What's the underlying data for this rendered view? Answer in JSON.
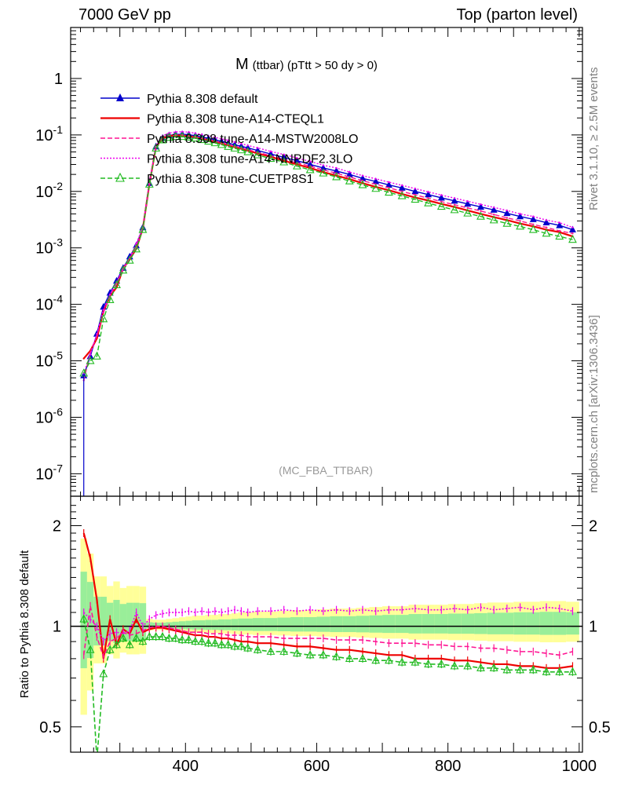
{
  "header": {
    "left": "7000 GeV pp",
    "right": "Top (parton level)"
  },
  "side_labels": {
    "rivet": "Rivet 3.1.10, ≥ 2.5M events",
    "mcplots": "mcplots.cern.ch [arXiv:1306.3436]"
  },
  "chart_data": [
    {
      "type": "line",
      "panel": "main",
      "title": "M (ttbar) (pTtt > 50 dy > 0)",
      "title_main": "M",
      "title_sub": "(ttbar) (pTtt > 50 dy > 0)",
      "watermark": "(MC_FBA_TTBAR)",
      "xlabel": "",
      "ylabel": "",
      "xlim": [
        225,
        1005
      ],
      "ylim": [
        4e-08,
        8
      ],
      "yscale": "log",
      "y_tick_labels": [
        "10^-7",
        "10^-6",
        "10^-5",
        "10^-4",
        "10^-3",
        "10^-2",
        "10^-1",
        "1"
      ],
      "x": [
        245,
        255,
        265,
        275,
        285,
        295,
        305,
        315,
        325,
        335,
        345,
        355,
        365,
        375,
        385,
        395,
        405,
        415,
        425,
        435,
        445,
        455,
        465,
        475,
        485,
        495,
        510,
        530,
        550,
        570,
        590,
        610,
        630,
        650,
        670,
        690,
        710,
        730,
        750,
        770,
        790,
        810,
        830,
        850,
        870,
        890,
        910,
        930,
        950,
        970,
        990
      ],
      "series": [
        {
          "name": "Pythia 8.308 default",
          "color": "#0000cc",
          "style": "solid",
          "marker": "triangle-filled",
          "values": [
            5.5e-06,
            1.2e-05,
            3e-05,
            9e-05,
            0.00016,
            0.00026,
            0.00044,
            0.0007,
            0.0011,
            0.0023,
            0.014,
            0.062,
            0.088,
            0.098,
            0.102,
            0.103,
            0.101,
            0.097,
            0.092,
            0.087,
            0.082,
            0.077,
            0.072,
            0.067,
            0.063,
            0.059,
            0.053,
            0.046,
            0.04,
            0.035,
            0.03,
            0.026,
            0.023,
            0.02,
            0.017,
            0.015,
            0.013,
            0.0115,
            0.01,
            0.0088,
            0.0077,
            0.0068,
            0.006,
            0.0053,
            0.0047,
            0.0041,
            0.0036,
            0.0032,
            0.0028,
            0.0025,
            0.0021
          ]
        },
        {
          "name": "Pythia 8.308 tune-A14-CTEQL1",
          "color": "#ee0000",
          "style": "solid",
          "marker": "none",
          "values": [
            1.1e-05,
            1.5e-05,
            2.5e-05,
            7.5e-05,
            0.00014,
            0.0002,
            0.00043,
            0.00063,
            0.00096,
            0.0022,
            0.0135,
            0.061,
            0.087,
            0.096,
            0.098,
            0.098,
            0.095,
            0.091,
            0.086,
            0.081,
            0.076,
            0.071,
            0.066,
            0.061,
            0.057,
            0.053,
            0.047,
            0.041,
            0.035,
            0.03,
            0.026,
            0.022,
            0.019,
            0.0165,
            0.014,
            0.012,
            0.0105,
            0.009,
            0.0078,
            0.0069,
            0.006,
            0.0053,
            0.0046,
            0.004,
            0.0035,
            0.0031,
            0.0027,
            0.0024,
            0.0021,
            0.0019,
            0.0016
          ]
        },
        {
          "name": "Pythia 8.308 tune-A14-MSTW2008LO",
          "color": "#ff1493",
          "style": "dashed",
          "marker": "none",
          "values": [
            4.5e-06,
            1.4e-05,
            2.8e-05,
            7.2e-05,
            0.00014,
            0.00024,
            0.00042,
            0.00066,
            0.00102,
            0.0022,
            0.0138,
            0.062,
            0.088,
            0.097,
            0.1,
            0.1,
            0.097,
            0.093,
            0.088,
            0.083,
            0.078,
            0.073,
            0.068,
            0.063,
            0.059,
            0.055,
            0.049,
            0.043,
            0.037,
            0.032,
            0.028,
            0.024,
            0.021,
            0.018,
            0.0155,
            0.0134,
            0.0116,
            0.01,
            0.0087,
            0.0076,
            0.0066,
            0.0058,
            0.0051,
            0.0045,
            0.0039,
            0.0034,
            0.003,
            0.0026,
            0.0023,
            0.002,
            0.0018
          ]
        },
        {
          "name": "Pythia 8.308 tune-A14-NNPDF2.3LO",
          "color": "#ee00ee",
          "style": "dotted",
          "marker": "none",
          "values": [
            6e-06,
            1.3e-05,
            3e-05,
            8e-05,
            0.00015,
            0.00025,
            0.00042,
            0.00068,
            0.0012,
            0.0023,
            0.0145,
            0.066,
            0.096,
            0.108,
            0.113,
            0.114,
            0.112,
            0.107,
            0.102,
            0.096,
            0.091,
            0.085,
            0.08,
            0.075,
            0.07,
            0.065,
            0.059,
            0.051,
            0.045,
            0.039,
            0.034,
            0.029,
            0.026,
            0.022,
            0.019,
            0.0167,
            0.0146,
            0.0128,
            0.0112,
            0.0098,
            0.0086,
            0.0076,
            0.0067,
            0.0059,
            0.0052,
            0.0046,
            0.004,
            0.0036,
            0.0031,
            0.0028,
            0.0023
          ]
        },
        {
          "name": "Pythia 8.308 tune-CUETP8S1",
          "color": "#22bb22",
          "style": "dashed",
          "marker": "triangle-open",
          "values": [
            6e-06,
            1e-05,
            1.2e-05,
            5.5e-05,
            0.00012,
            0.00022,
            0.0004,
            0.0006,
            0.00095,
            0.0021,
            0.0133,
            0.058,
            0.081,
            0.09,
            0.093,
            0.093,
            0.091,
            0.087,
            0.082,
            0.077,
            0.072,
            0.067,
            0.062,
            0.058,
            0.054,
            0.05,
            0.044,
            0.038,
            0.033,
            0.028,
            0.024,
            0.021,
            0.018,
            0.0152,
            0.013,
            0.0112,
            0.0096,
            0.0083,
            0.0072,
            0.0062,
            0.0054,
            0.0047,
            0.0041,
            0.0036,
            0.0031,
            0.0027,
            0.0024,
            0.0021,
            0.0018,
            0.0016,
            0.0014
          ]
        }
      ],
      "legend_position": "top-left"
    },
    {
      "type": "line",
      "panel": "ratio",
      "xlabel": "",
      "ylabel": "Ratio to Pythia 8.308 default",
      "xlim": [
        225,
        1005
      ],
      "ylim": [
        0.42,
        2.45
      ],
      "yscale": "log",
      "x_tick_labels": [
        "400",
        "600",
        "800",
        "1000"
      ],
      "y_tick_labels": [
        "0.5",
        "1",
        "2"
      ],
      "x": [
        245,
        255,
        265,
        275,
        285,
        295,
        305,
        315,
        325,
        335,
        345,
        355,
        365,
        375,
        385,
        395,
        405,
        415,
        425,
        435,
        445,
        455,
        465,
        475,
        485,
        495,
        510,
        530,
        550,
        570,
        590,
        610,
        630,
        650,
        670,
        690,
        710,
        730,
        750,
        770,
        790,
        810,
        830,
        850,
        870,
        890,
        910,
        930,
        950,
        970,
        990
      ],
      "series": [
        {
          "name": "Pythia 8.308 tune-A14-CTEQL1",
          "color": "#ee0000",
          "style": "solid",
          "values": [
            1.9,
            1.6,
            1.2,
            0.8,
            1.05,
            0.88,
            0.98,
            0.95,
            1.05,
            0.96,
            0.98,
            0.99,
            0.99,
            0.98,
            0.97,
            0.96,
            0.95,
            0.94,
            0.94,
            0.93,
            0.93,
            0.92,
            0.92,
            0.91,
            0.9,
            0.9,
            0.89,
            0.89,
            0.88,
            0.87,
            0.87,
            0.86,
            0.85,
            0.85,
            0.84,
            0.83,
            0.82,
            0.82,
            0.8,
            0.8,
            0.8,
            0.79,
            0.79,
            0.78,
            0.77,
            0.77,
            0.76,
            0.76,
            0.75,
            0.75,
            0.76
          ]
        },
        {
          "name": "Pythia 8.308 tune-A14-MSTW2008LO",
          "color": "#ff1493",
          "style": "dashed",
          "values": [
            0.82,
            1.15,
            0.93,
            0.81,
            0.9,
            0.92,
            0.96,
            0.94,
            0.95,
            0.97,
            0.99,
            1.0,
            1.0,
            0.99,
            0.98,
            0.97,
            0.96,
            0.96,
            0.96,
            0.95,
            0.95,
            0.95,
            0.94,
            0.94,
            0.94,
            0.93,
            0.93,
            0.93,
            0.92,
            0.92,
            0.92,
            0.92,
            0.91,
            0.91,
            0.91,
            0.9,
            0.89,
            0.89,
            0.89,
            0.88,
            0.88,
            0.87,
            0.87,
            0.86,
            0.86,
            0.85,
            0.84,
            0.84,
            0.83,
            0.82,
            0.84
          ]
        },
        {
          "name": "Pythia 8.308 tune-A14-NNPDF2.3LO",
          "color": "#ee00ee",
          "style": "dotted",
          "values": [
            1.1,
            1.05,
            1.0,
            0.9,
            0.95,
            0.96,
            0.95,
            0.97,
            1.1,
            1.0,
            1.05,
            1.08,
            1.09,
            1.1,
            1.1,
            1.1,
            1.11,
            1.1,
            1.11,
            1.1,
            1.11,
            1.1,
            1.11,
            1.12,
            1.11,
            1.1,
            1.11,
            1.11,
            1.12,
            1.11,
            1.12,
            1.11,
            1.12,
            1.11,
            1.12,
            1.11,
            1.12,
            1.12,
            1.13,
            1.12,
            1.12,
            1.13,
            1.12,
            1.14,
            1.12,
            1.13,
            1.14,
            1.12,
            1.14,
            1.13,
            1.11
          ]
        },
        {
          "name": "Pythia 8.308 tune-CUETP8S1",
          "color": "#22bb22",
          "style": "dashed",
          "values": [
            1.05,
            0.85,
            0.4,
            0.72,
            0.85,
            0.88,
            0.92,
            0.88,
            0.92,
            0.9,
            0.93,
            0.93,
            0.93,
            0.92,
            0.92,
            0.91,
            0.91,
            0.9,
            0.9,
            0.89,
            0.89,
            0.88,
            0.88,
            0.87,
            0.87,
            0.86,
            0.85,
            0.84,
            0.84,
            0.83,
            0.82,
            0.82,
            0.81,
            0.8,
            0.8,
            0.79,
            0.79,
            0.78,
            0.78,
            0.77,
            0.77,
            0.76,
            0.76,
            0.75,
            0.75,
            0.74,
            0.74,
            0.74,
            0.73,
            0.73,
            0.73
          ]
        }
      ]
    }
  ]
}
